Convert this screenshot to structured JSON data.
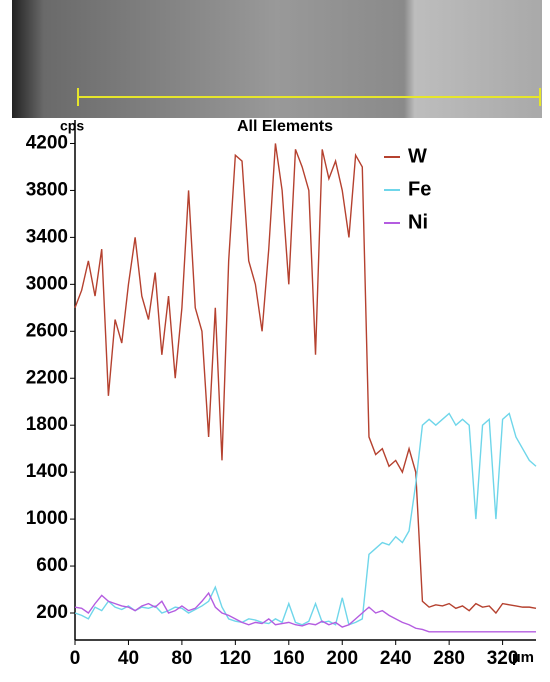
{
  "chart_data": {
    "type": "line",
    "title": "All Elements",
    "y_label": "cps",
    "x_label": "µm",
    "x": [
      0,
      5,
      10,
      15,
      20,
      25,
      30,
      35,
      40,
      45,
      50,
      55,
      60,
      65,
      70,
      75,
      80,
      85,
      90,
      95,
      100,
      105,
      110,
      115,
      120,
      125,
      130,
      135,
      140,
      145,
      150,
      155,
      160,
      165,
      170,
      175,
      180,
      185,
      190,
      195,
      200,
      205,
      210,
      215,
      220,
      225,
      230,
      235,
      240,
      245,
      250,
      255,
      260,
      265,
      270,
      275,
      280,
      285,
      290,
      295,
      300,
      305,
      310,
      315,
      320,
      325,
      330,
      335,
      340,
      345
    ],
    "series": [
      {
        "name": "W",
        "color": "#b5412f",
        "values": [
          2800,
          2950,
          3200,
          2900,
          3300,
          2050,
          2700,
          2500,
          3000,
          3400,
          2900,
          2700,
          3100,
          2400,
          2900,
          2200,
          2800,
          3800,
          2800,
          2600,
          1700,
          2800,
          1500,
          3200,
          4100,
          4050,
          3200,
          3000,
          2600,
          3300,
          4200,
          3800,
          3000,
          4150,
          4000,
          3800,
          2400,
          4150,
          3900,
          4050,
          3800,
          3400,
          4100,
          4000,
          1700,
          1550,
          1600,
          1450,
          1500,
          1400,
          1600,
          1400,
          300,
          250,
          270,
          260,
          280,
          240,
          260,
          220,
          280,
          250,
          260,
          200,
          280,
          270,
          260,
          250,
          250,
          240
        ]
      },
      {
        "name": "Fe",
        "color": "#6fd6ea",
        "values": [
          200,
          180,
          150,
          250,
          220,
          300,
          250,
          230,
          260,
          220,
          250,
          240,
          260,
          200,
          220,
          250,
          240,
          200,
          230,
          260,
          300,
          420,
          250,
          150,
          130,
          120,
          150,
          140,
          120,
          110,
          150,
          120,
          280,
          120,
          100,
          130,
          280,
          120,
          130,
          100,
          330,
          100,
          120,
          150,
          700,
          750,
          800,
          780,
          850,
          800,
          900,
          1300,
          1800,
          1850,
          1800,
          1850,
          1900,
          1800,
          1850,
          1800,
          1000,
          1800,
          1850,
          1000,
          1850,
          1900,
          1700,
          1600,
          1500,
          1450
        ]
      },
      {
        "name": "Ni",
        "color": "#b45ce0",
        "values": [
          250,
          240,
          200,
          280,
          350,
          300,
          280,
          260,
          250,
          220,
          260,
          280,
          250,
          300,
          200,
          220,
          260,
          220,
          240,
          300,
          370,
          250,
          200,
          180,
          150,
          120,
          100,
          120,
          110,
          150,
          100,
          110,
          120,
          100,
          90,
          110,
          100,
          130,
          100,
          120,
          80,
          100,
          150,
          200,
          250,
          200,
          220,
          180,
          150,
          120,
          100,
          70,
          60,
          40,
          40,
          40,
          40,
          40,
          40,
          40,
          40,
          40,
          40,
          40,
          40,
          40,
          40,
          40,
          40,
          40
        ]
      }
    ],
    "xlim": [
      0,
      345
    ],
    "xticks": [
      0,
      40,
      80,
      120,
      160,
      200,
      240,
      280,
      320
    ],
    "ylim": [
      -30,
      4400
    ],
    "yticks": [
      200,
      600,
      1000,
      1400,
      1800,
      2200,
      2600,
      3000,
      3400,
      3800,
      4200
    ]
  }
}
